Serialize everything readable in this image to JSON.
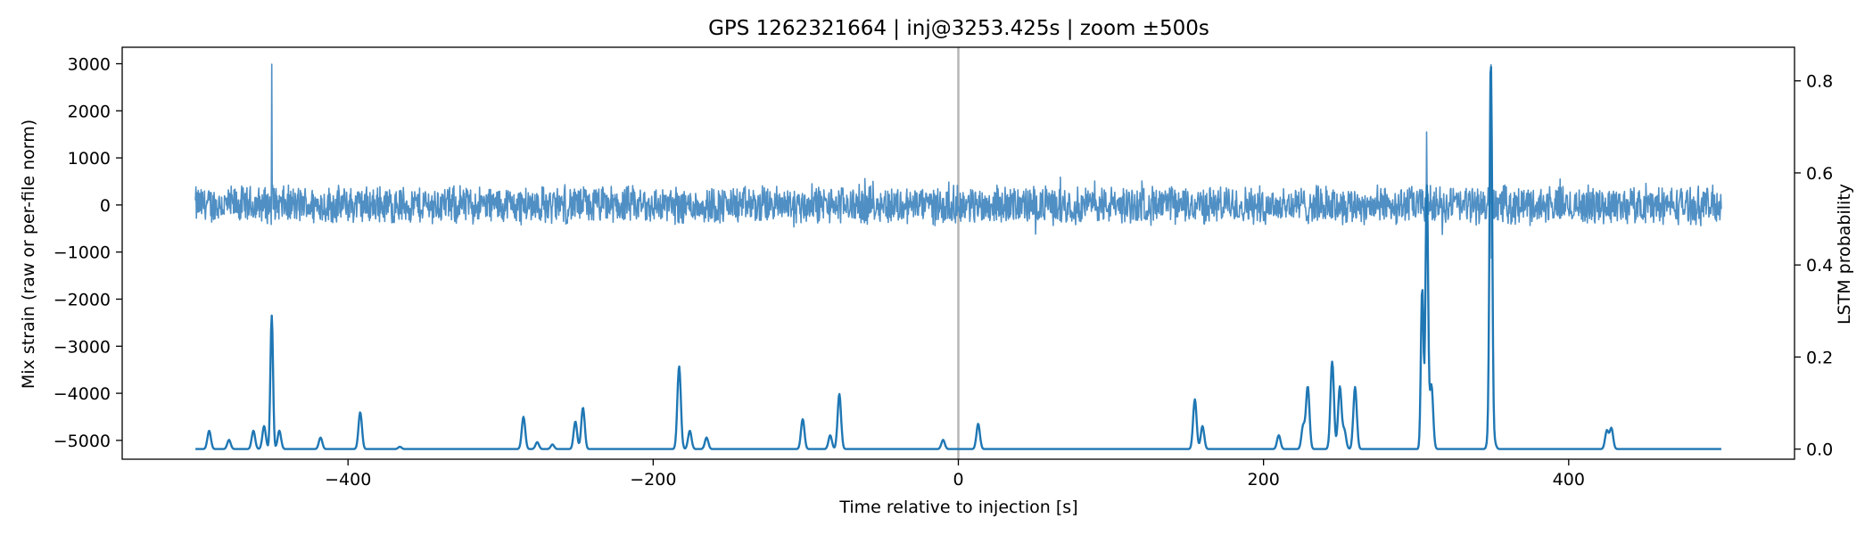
{
  "chart_data": {
    "type": "line",
    "title": "GPS 1262321664 | inj@3253.425s | zoom ±500s",
    "xlabel": "Time relative to injection [s]",
    "ylabel_left": "Mix strain (raw or per-file norm)",
    "ylabel_right": "LSTM probability",
    "xlim": [
      -548,
      548
    ],
    "ylim_left": [
      -5400,
      3350
    ],
    "ylim_right": [
      -0.022,
      0.873
    ],
    "x_ticks": [
      -400,
      -200,
      0,
      200,
      400
    ],
    "y_ticks_left": [
      -5000,
      -4000,
      -3000,
      -2000,
      -1000,
      0,
      1000,
      2000,
      3000
    ],
    "y_ticks_right": [
      0.0,
      0.2,
      0.4,
      0.6,
      0.8
    ],
    "grid": false,
    "injection_marker": {
      "x": 0,
      "color": "#a9a9a9"
    },
    "series": [
      {
        "axis": "left",
        "color": "#4f8fc4",
        "x_range": [
          -500,
          500
        ],
        "noise_amplitude": 450,
        "noise_max": 950,
        "noise_min": -1180,
        "spikes": [
          {
            "x": -450,
            "peak": 2990,
            "trough": 350
          },
          {
            "x": 307,
            "peak": 1550,
            "trough": 400
          },
          {
            "x": 349,
            "peak": 2980,
            "trough": -1130
          }
        ]
      },
      {
        "axis": "right",
        "color": "#1f77b4",
        "x_range": [
          -500,
          500
        ],
        "baseline": 0.0,
        "peaks": [
          {
            "x": -491,
            "y": 0.04
          },
          {
            "x": -478,
            "y": 0.02
          },
          {
            "x": -462,
            "y": 0.04
          },
          {
            "x": -455,
            "y": 0.05
          },
          {
            "x": -450,
            "y": 0.29
          },
          {
            "x": -445,
            "y": 0.04
          },
          {
            "x": -418,
            "y": 0.025
          },
          {
            "x": -392,
            "y": 0.08
          },
          {
            "x": -366,
            "y": 0.005
          },
          {
            "x": -285,
            "y": 0.07
          },
          {
            "x": -276,
            "y": 0.015
          },
          {
            "x": -266,
            "y": 0.01
          },
          {
            "x": -251,
            "y": 0.06
          },
          {
            "x": -246,
            "y": 0.09
          },
          {
            "x": -183,
            "y": 0.18
          },
          {
            "x": -176,
            "y": 0.04
          },
          {
            "x": -165,
            "y": 0.025
          },
          {
            "x": -102,
            "y": 0.065
          },
          {
            "x": -84,
            "y": 0.03
          },
          {
            "x": -78,
            "y": 0.12
          },
          {
            "x": -10,
            "y": 0.02
          },
          {
            "x": 13,
            "y": 0.055
          },
          {
            "x": 155,
            "y": 0.108
          },
          {
            "x": 160,
            "y": 0.05
          },
          {
            "x": 210,
            "y": 0.03
          },
          {
            "x": 226,
            "y": 0.05
          },
          {
            "x": 229,
            "y": 0.135
          },
          {
            "x": 245,
            "y": 0.19
          },
          {
            "x": 250,
            "y": 0.135
          },
          {
            "x": 253,
            "y": 0.04
          },
          {
            "x": 260,
            "y": 0.135
          },
          {
            "x": 304,
            "y": 0.35
          },
          {
            "x": 307,
            "y": 0.57
          },
          {
            "x": 310,
            "y": 0.14
          },
          {
            "x": 348,
            "y": 0.035
          },
          {
            "x": 349,
            "y": 0.82
          },
          {
            "x": 351,
            "y": 0.02
          },
          {
            "x": 425,
            "y": 0.04
          },
          {
            "x": 428,
            "y": 0.045
          }
        ]
      }
    ]
  }
}
